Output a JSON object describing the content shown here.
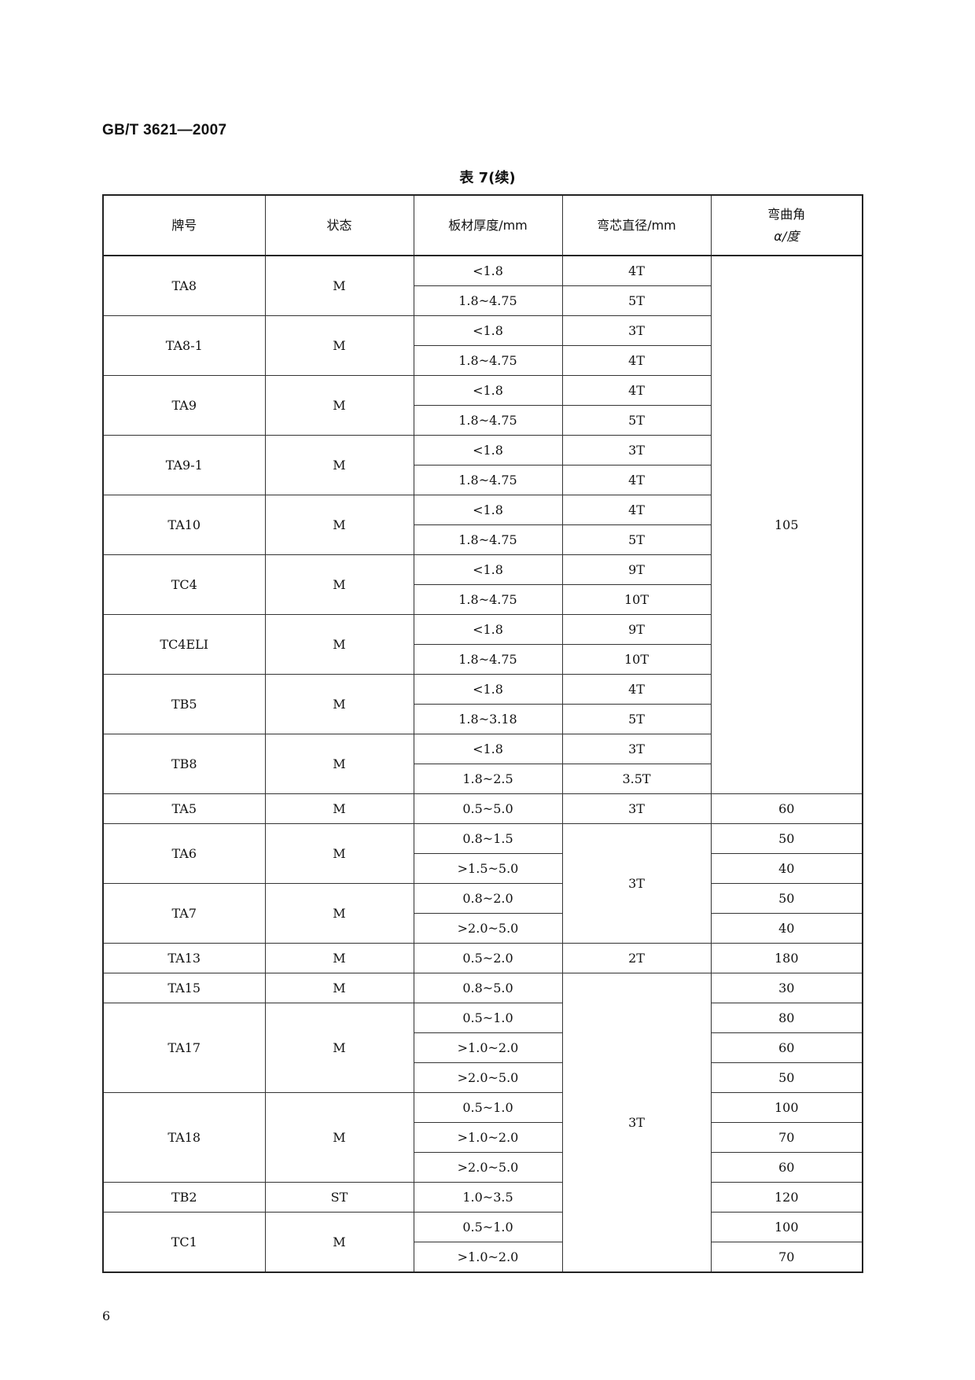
{
  "header": {
    "standard_number": "GB/T 3621—2007"
  },
  "table": {
    "caption": "表 7(续)",
    "columns": [
      "牌号",
      "状态",
      "板材厚度/mm",
      "弯芯直径/mm",
      "弯曲角",
      "α/度"
    ],
    "groups": [
      {
        "grade": "TA8",
        "state": "M",
        "thickness": [
          "<1.8",
          "1.8~4.75"
        ]
      },
      {
        "grade": "TA8-1",
        "state": "M",
        "thickness": [
          "<1.8",
          "1.8~4.75"
        ]
      },
      {
        "grade": "TA9",
        "state": "M",
        "thickness": [
          "<1.8",
          "1.8~4.75"
        ]
      },
      {
        "grade": "TA9-1",
        "state": "M",
        "thickness": [
          "<1.8",
          "1.8~4.75"
        ]
      },
      {
        "grade": "TA10",
        "state": "M",
        "thickness": [
          "<1.8",
          "1.8~4.75"
        ]
      },
      {
        "grade": "TC4",
        "state": "M",
        "thickness": [
          "<1.8",
          "1.8~4.75"
        ]
      },
      {
        "grade": "TC4ELI",
        "state": "M",
        "thickness": [
          "<1.8",
          "1.8~4.75"
        ]
      },
      {
        "grade": "TB5",
        "state": "M",
        "thickness": [
          "<1.8",
          "1.8~3.18"
        ]
      },
      {
        "grade": "TB8",
        "state": "M",
        "thickness": [
          "<1.8",
          "1.8~2.5"
        ]
      },
      {
        "grade": "TA5",
        "state": "M",
        "thickness": [
          "0.5~5.0"
        ]
      },
      {
        "grade": "TA6",
        "state": "M",
        "thickness": [
          "0.8~1.5",
          ">1.5~5.0"
        ]
      },
      {
        "grade": "TA7",
        "state": "M",
        "thickness": [
          "0.8~2.0",
          ">2.0~5.0"
        ]
      },
      {
        "grade": "TA13",
        "state": "M",
        "thickness": [
          "0.5~2.0"
        ]
      },
      {
        "grade": "TA15",
        "state": "M",
        "thickness": [
          "0.8~5.0"
        ]
      },
      {
        "grade": "TA17",
        "state": "M",
        "thickness": [
          "0.5~1.0",
          ">1.0~2.0",
          ">2.0~5.0"
        ]
      },
      {
        "grade": "TA18",
        "state": "M",
        "thickness": [
          "0.5~1.0",
          ">1.0~2.0",
          ">2.0~5.0"
        ]
      },
      {
        "grade": "TB2",
        "state": "ST",
        "thickness": [
          "1.0~3.5"
        ]
      },
      {
        "grade": "TC1",
        "state": "M",
        "thickness": [
          "0.5~1.0",
          ">1.0~2.0"
        ]
      }
    ],
    "mandrel_diameter": [
      {
        "value": "4T",
        "span": 1
      },
      {
        "value": "5T",
        "span": 1
      },
      {
        "value": "3T",
        "span": 1
      },
      {
        "value": "4T",
        "span": 1
      },
      {
        "value": "4T",
        "span": 1
      },
      {
        "value": "5T",
        "span": 1
      },
      {
        "value": "3T",
        "span": 1
      },
      {
        "value": "4T",
        "span": 1
      },
      {
        "value": "4T",
        "span": 1
      },
      {
        "value": "5T",
        "span": 1
      },
      {
        "value": "9T",
        "span": 1
      },
      {
        "value": "10T",
        "span": 1
      },
      {
        "value": "9T",
        "span": 1
      },
      {
        "value": "10T",
        "span": 1
      },
      {
        "value": "4T",
        "span": 1
      },
      {
        "value": "5T",
        "span": 1
      },
      {
        "value": "3T",
        "span": 1
      },
      {
        "value": "3.5T",
        "span": 1
      },
      {
        "value": "3T",
        "span": 1
      },
      {
        "value": "3T",
        "span": 4
      },
      {
        "value": "2T",
        "span": 1
      },
      {
        "value": "3T",
        "span": 10
      }
    ],
    "bend_angle": [
      {
        "value": "105",
        "span": 18
      },
      {
        "value": "60",
        "span": 1
      },
      {
        "value": "50",
        "span": 1
      },
      {
        "value": "40",
        "span": 1
      },
      {
        "value": "50",
        "span": 1
      },
      {
        "value": "40",
        "span": 1
      },
      {
        "value": "180",
        "span": 1
      },
      {
        "value": "30",
        "span": 1
      },
      {
        "value": "80",
        "span": 1
      },
      {
        "value": "60",
        "span": 1
      },
      {
        "value": "50",
        "span": 1
      },
      {
        "value": "100",
        "span": 1
      },
      {
        "value": "70",
        "span": 1
      },
      {
        "value": "60",
        "span": 1
      },
      {
        "value": "120",
        "span": 1
      },
      {
        "value": "100",
        "span": 1
      },
      {
        "value": "70",
        "span": 1
      }
    ]
  },
  "footer": {
    "page_number": "6"
  }
}
